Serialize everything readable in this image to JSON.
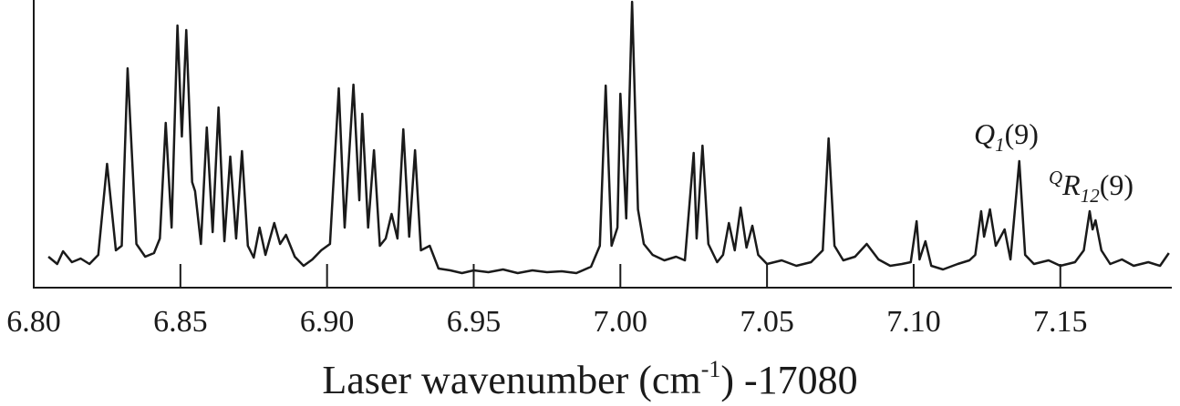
{
  "chart_data": {
    "type": "line",
    "color": "#1a1a1a",
    "x_label": {
      "text": "Laser wavenumber (cm",
      "sup": "-1",
      "after": ") -17080"
    },
    "annotations": [
      {
        "main": "Q",
        "sub": "1",
        "after": "(9)"
      },
      {
        "pre": "Q",
        "main": "R",
        "sub": "12",
        "after": "(9)"
      }
    ],
    "xlim": [
      6.8,
      7.188
    ],
    "xticks": [
      {
        "value": 6.8,
        "label": "6.80"
      },
      6.85,
      {
        "value": 6.9,
        "label": "6.90"
      },
      6.95,
      {
        "value": 7.0,
        "label": "7.00"
      },
      7.05,
      {
        "value": 7.1,
        "label": "7.10"
      },
      7.15
    ],
    "ylim": [
      0,
      316
    ],
    "x": [
      6.805,
      6.808,
      6.81,
      6.813,
      6.816,
      6.819,
      6.822,
      6.825,
      6.828,
      6.83,
      6.832,
      6.835,
      6.838,
      6.841,
      6.843,
      6.845,
      6.847,
      6.849,
      6.8505,
      6.852,
      6.854,
      6.855,
      6.857,
      6.859,
      6.861,
      6.863,
      6.865,
      6.867,
      6.869,
      6.871,
      6.873,
      6.875,
      6.877,
      6.879,
      6.882,
      6.884,
      6.886,
      6.889,
      6.892,
      6.895,
      6.898,
      6.901,
      6.904,
      6.906,
      6.909,
      6.911,
      6.912,
      6.914,
      6.916,
      6.918,
      6.92,
      6.922,
      6.924,
      6.926,
      6.928,
      6.93,
      6.932,
      6.935,
      6.938,
      6.942,
      6.946,
      6.95,
      6.955,
      6.96,
      6.965,
      6.97,
      6.975,
      6.98,
      6.985,
      6.99,
      6.993,
      6.995,
      6.997,
      6.999,
      7.0,
      7.002,
      7.004,
      7.006,
      7.008,
      7.011,
      7.015,
      7.019,
      7.022,
      7.025,
      7.026,
      7.028,
      7.03,
      7.033,
      7.035,
      7.037,
      7.039,
      7.041,
      7.043,
      7.045,
      7.047,
      7.05,
      7.055,
      7.06,
      7.065,
      7.069,
      7.071,
      7.073,
      7.076,
      7.08,
      7.084,
      7.088,
      7.092,
      7.096,
      7.099,
      7.101,
      7.102,
      7.104,
      7.106,
      7.11,
      7.115,
      7.119,
      7.121,
      7.123,
      7.124,
      7.126,
      7.128,
      7.131,
      7.133,
      7.136,
      7.138,
      7.141,
      7.146,
      7.15,
      7.155,
      7.158,
      7.16,
      7.161,
      7.162,
      7.164,
      7.167,
      7.171,
      7.175,
      7.18,
      7.184,
      7.187
    ],
    "values": [
      34,
      26,
      40,
      28,
      32,
      26,
      36,
      136,
      41,
      46,
      241,
      48,
      34,
      38,
      54,
      181,
      66,
      288,
      166,
      283,
      116,
      106,
      48,
      176,
      61,
      198,
      51,
      144,
      54,
      150,
      46,
      33,
      66,
      36,
      71,
      48,
      58,
      34,
      24,
      31,
      41,
      48,
      219,
      66,
      223,
      96,
      191,
      66,
      151,
      46,
      54,
      81,
      54,
      174,
      56,
      151,
      41,
      46,
      21,
      19,
      16,
      19,
      17,
      20,
      16,
      19,
      17,
      18,
      16,
      23,
      46,
      222,
      46,
      66,
      213,
      76,
      314,
      86,
      48,
      36,
      30,
      34,
      30,
      148,
      54,
      156,
      48,
      28,
      36,
      71,
      41,
      88,
      44,
      68,
      36,
      26,
      30,
      24,
      28,
      41,
      164,
      46,
      30,
      34,
      48,
      31,
      24,
      26,
      28,
      73,
      31,
      51,
      24,
      20,
      26,
      30,
      36,
      84,
      56,
      86,
      46,
      64,
      31,
      139,
      36,
      26,
      30,
      24,
      28,
      41,
      84,
      64,
      74,
      41,
      26,
      31,
      24,
      28,
      24,
      38
    ]
  }
}
